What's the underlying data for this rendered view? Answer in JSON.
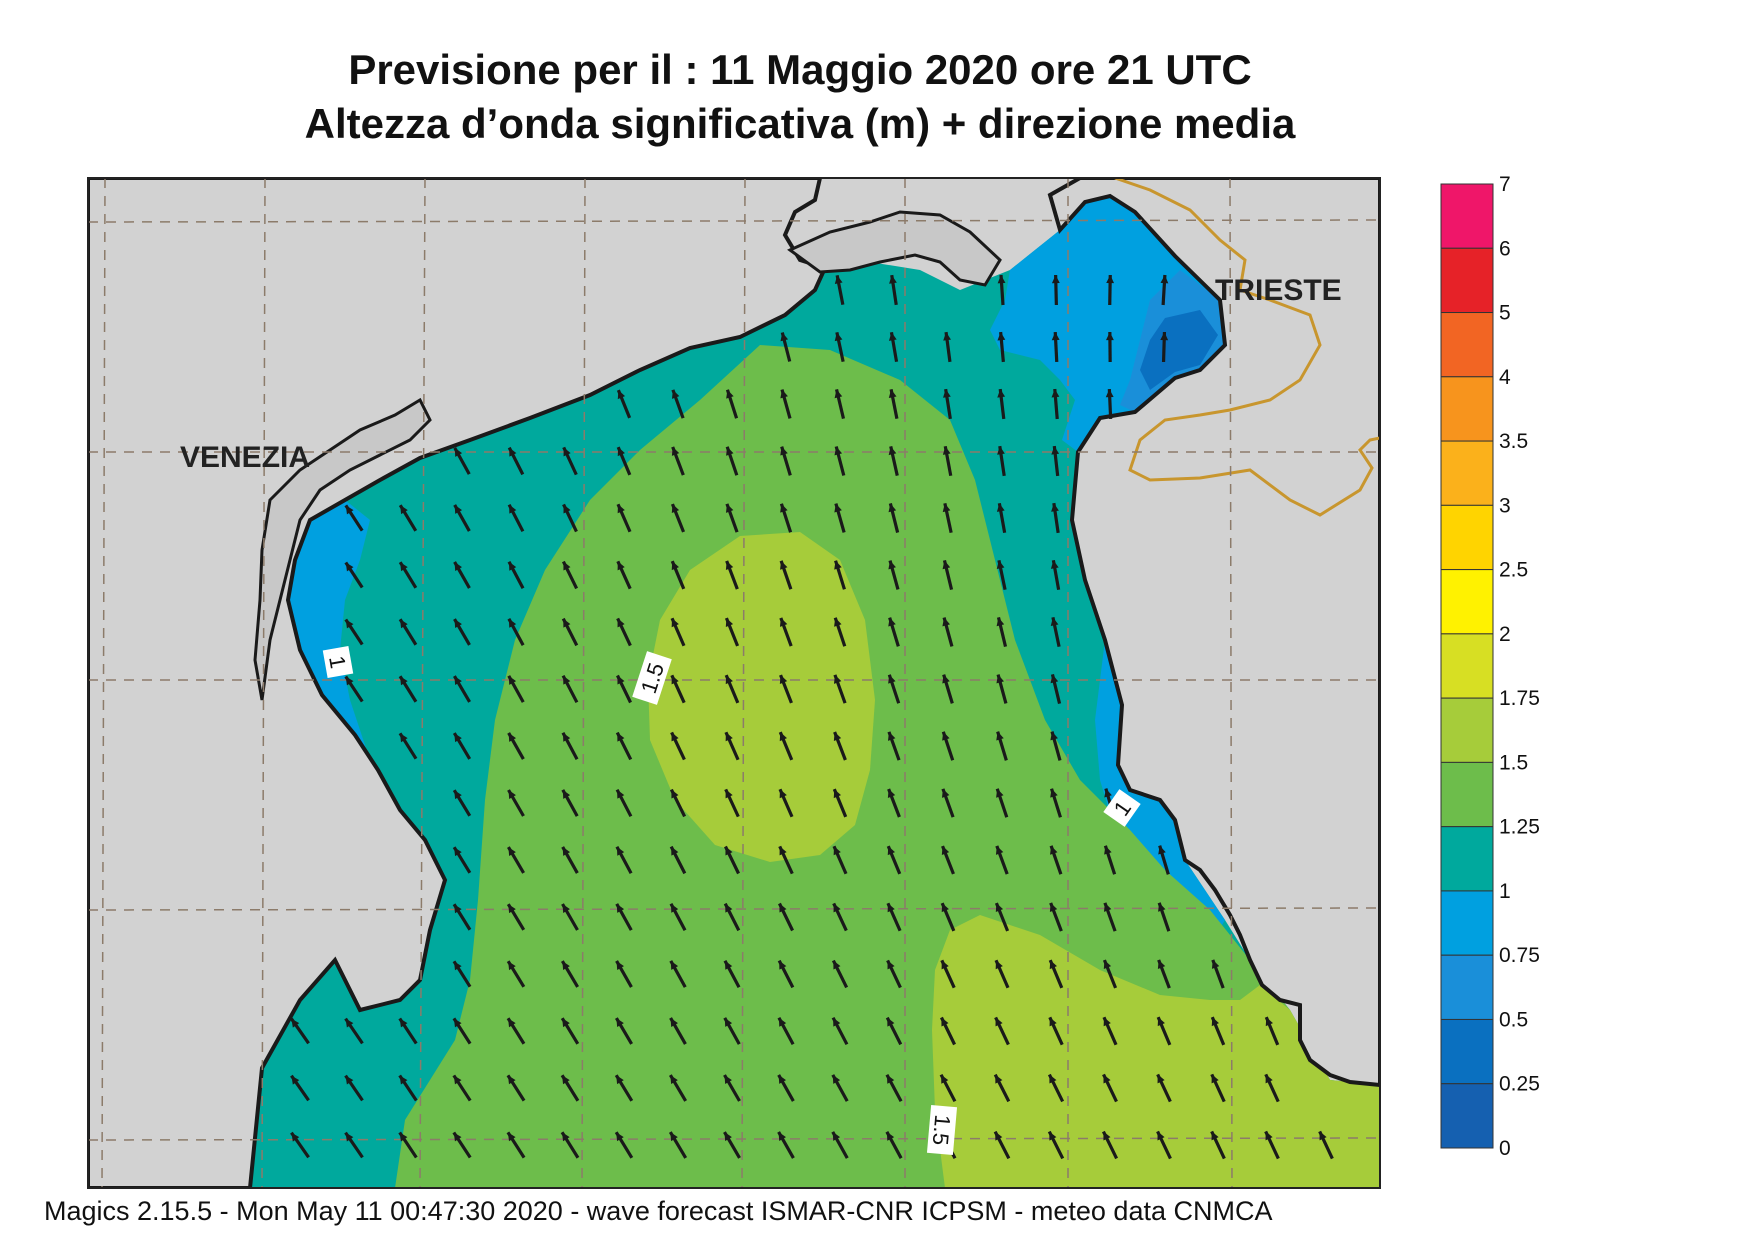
{
  "title": {
    "line1": "Previsione per il  :  11   Maggio  2020   ore 21 UTC",
    "line2": "Altezza d’onda significativa (m) + direzione media"
  },
  "map": {
    "places": [
      {
        "name": "VENEZIA"
      },
      {
        "name": "TRIESTE"
      }
    ],
    "contour_labels": [
      "1",
      "1.5",
      "1",
      "1.5"
    ],
    "arrow_direction": "north-northwest",
    "land_color": "#d2d2d2",
    "coastline_color": "#1a1a1a",
    "border_color": "#c8962e"
  },
  "colorbar": {
    "levels": [
      "7",
      "6",
      "5",
      "4",
      "3.5",
      "3",
      "2.5",
      "2",
      "1.75",
      "1.5",
      "1.25",
      "1",
      "0.75",
      "0.5",
      "0.25",
      "0"
    ],
    "colors": [
      "#ef1669",
      "#e62228",
      "#f26523",
      "#f7941d",
      "#fbb11b",
      "#ffd400",
      "#fff200",
      "#d7df23",
      "#a6cc3a",
      "#6dbd4b",
      "#00a99d",
      "#00a0e0",
      "#1a8fd9",
      "#0a70c0",
      "#1560b0"
    ]
  },
  "footer": "Magics 2.15.5 - Mon May 11 00:47:30 2020 - wave forecast  ISMAR-CNR  ICPSM - meteo data   CNMCA"
}
